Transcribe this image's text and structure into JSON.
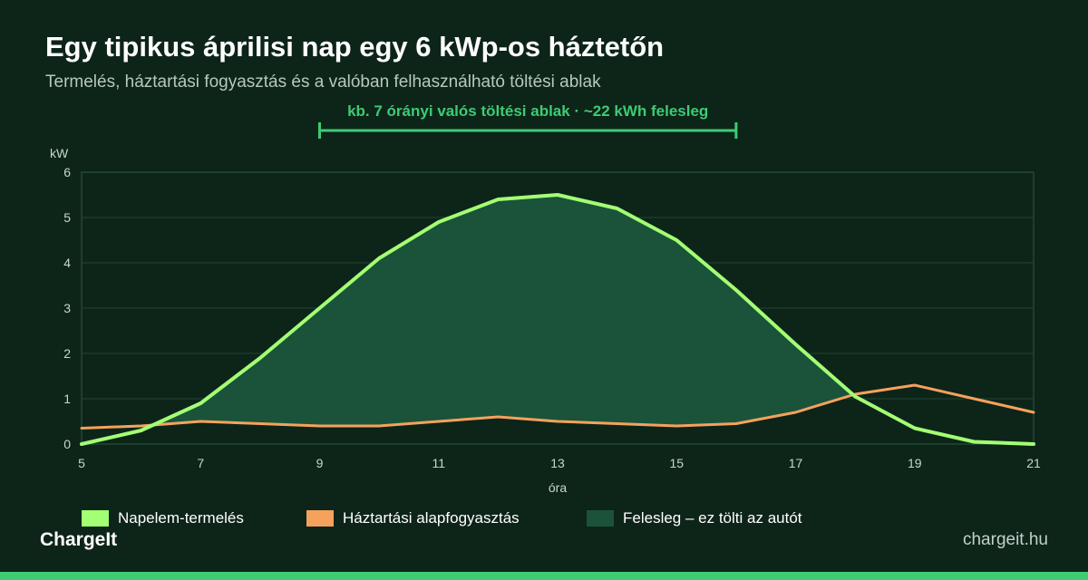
{
  "header": {
    "title": "Egy tipikus áprilisi nap egy 6 kWp-os háztetőn",
    "subtitle": "Termelés, háztartási fogyasztás és a valóban felhasználható töltési ablak"
  },
  "chart_data": {
    "type": "line",
    "ylabel": "kW",
    "xlabel": "óra",
    "xlim": [
      5,
      21
    ],
    "ylim": [
      0,
      6
    ],
    "x_ticks": [
      5,
      7,
      9,
      11,
      13,
      15,
      17,
      19,
      21
    ],
    "y_ticks": [
      0,
      1,
      2,
      3,
      4,
      5,
      6
    ],
    "grid": true,
    "x": [
      5,
      6,
      7,
      8,
      9,
      10,
      11,
      12,
      13,
      14,
      15,
      16,
      17,
      18,
      19,
      20,
      21
    ],
    "series": [
      {
        "name": "Napelem-termelés",
        "color": "#a3ff73",
        "values": [
          0,
          0.3,
          0.9,
          1.9,
          3.0,
          4.1,
          4.9,
          5.4,
          5.5,
          5.2,
          4.5,
          3.4,
          2.2,
          1.05,
          0.35,
          0.05,
          0
        ]
      },
      {
        "name": "Háztartási alapfogyasztás",
        "color": "#f5a25d",
        "values": [
          0.35,
          0.4,
          0.5,
          0.45,
          0.4,
          0.4,
          0.5,
          0.6,
          0.5,
          0.45,
          0.4,
          0.45,
          0.7,
          1.1,
          1.3,
          1.0,
          0.7
        ]
      }
    ],
    "fill": {
      "name": "Felesleg – ez tölti az autót",
      "color": "#1a5339",
      "between": [
        "Napelem-termelés",
        "Háztartási alapfogyasztás"
      ]
    },
    "annotation": {
      "text": "kb. 7 órányi valós töltési ablak · ~22 kWh felesleg",
      "x_start": 9,
      "x_end": 16,
      "color": "#3ecb73"
    },
    "legend_position": "bottom"
  },
  "footer": {
    "brand": "ChargeIt",
    "domain": "chargeit.hu"
  }
}
